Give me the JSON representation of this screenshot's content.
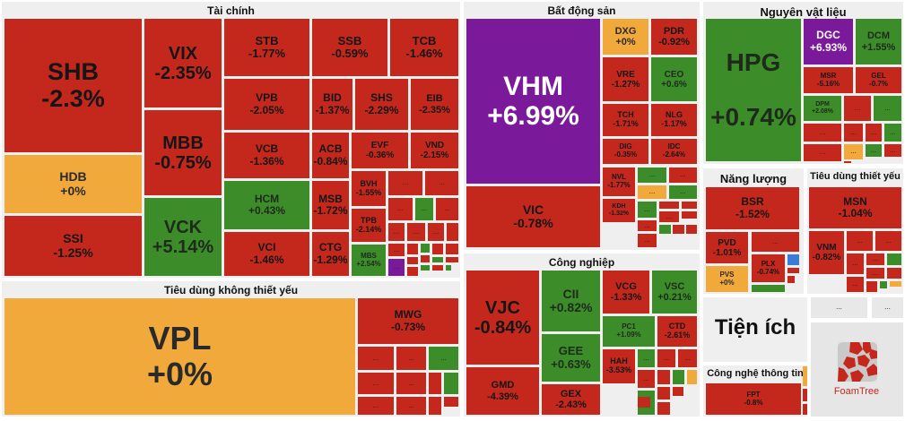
{
  "colors": {
    "down": "#c4281c",
    "up": "#3d8c2a",
    "flat": "#f2a93b",
    "ceiling": "#7a1a9a"
  },
  "ellipsis": "...",
  "groups": [
    {
      "id": "tai-chinh",
      "title": "Tài chính"
    },
    {
      "id": "tieu-dung-khong-thiet-yeu",
      "title": "Tiêu dùng không thiết yếu"
    },
    {
      "id": "bat-dong-san",
      "title": "Bất động sản"
    },
    {
      "id": "cong-nghiep",
      "title": "Công nghiệp"
    },
    {
      "id": "nguyen-vat-lieu",
      "title": "Nguyên vật liệu"
    },
    {
      "id": "nang-luong",
      "title": "Năng lượng"
    },
    {
      "id": "tieu-dung-thiet-yeu",
      "title": "Tiêu dùng thiết yếu"
    },
    {
      "id": "tien-ich",
      "title": "Tiện ích"
    },
    {
      "id": "cong-nghe-thong-tin",
      "title": "Công nghệ thông tin"
    }
  ],
  "tiles": [
    {
      "ticker": "SHB",
      "change": "-2.3%",
      "color": "r"
    },
    {
      "ticker": "HDB",
      "change": "+0%",
      "color": "o"
    },
    {
      "ticker": "SSI",
      "change": "-1.25%",
      "color": "r"
    },
    {
      "ticker": "VIX",
      "change": "-2.35%",
      "color": "r"
    },
    {
      "ticker": "MBB",
      "change": "-0.75%",
      "color": "r"
    },
    {
      "ticker": "VCK",
      "change": "+5.14%",
      "color": "g"
    },
    {
      "ticker": "STB",
      "change": "-1.77%",
      "color": "r"
    },
    {
      "ticker": "SSB",
      "change": "-0.59%",
      "color": "r"
    },
    {
      "ticker": "TCB",
      "change": "-1.46%",
      "color": "r"
    },
    {
      "ticker": "VPB",
      "change": "-2.05%",
      "color": "r"
    },
    {
      "ticker": "BID",
      "change": "-1.37%",
      "color": "r"
    },
    {
      "ticker": "SHS",
      "change": "-2.29%",
      "color": "r"
    },
    {
      "ticker": "EIB",
      "change": "-2.35%",
      "color": "r"
    },
    {
      "ticker": "VCB",
      "change": "-1.36%",
      "color": "r"
    },
    {
      "ticker": "ACB",
      "change": "-0.84%",
      "color": "r"
    },
    {
      "ticker": "EVF",
      "change": "-0.36%",
      "color": "r"
    },
    {
      "ticker": "VND",
      "change": "-2.15%",
      "color": "r"
    },
    {
      "ticker": "HCM",
      "change": "+0.43%",
      "color": "g"
    },
    {
      "ticker": "MSB",
      "change": "-1.72%",
      "color": "r"
    },
    {
      "ticker": "BVH",
      "change": "-1.55%",
      "color": "r"
    },
    {
      "ticker": "TPB",
      "change": "-2.14%",
      "color": "r"
    },
    {
      "ticker": "VCI",
      "change": "-1.46%",
      "color": "r"
    },
    {
      "ticker": "CTG",
      "change": "-1.29%",
      "color": "r"
    },
    {
      "ticker": "MBS",
      "change": "+2.54%",
      "color": "g"
    },
    {
      "ticker": "VPL",
      "change": "+0%",
      "color": "o"
    },
    {
      "ticker": "MWG",
      "change": "-0.73%",
      "color": "r"
    },
    {
      "ticker": "VHM",
      "change": "+6.99%",
      "color": "p"
    },
    {
      "ticker": "VIC",
      "change": "-0.78%",
      "color": "r"
    },
    {
      "ticker": "DXG",
      "change": "+0%",
      "color": "o"
    },
    {
      "ticker": "PDR",
      "change": "-0.92%",
      "color": "r"
    },
    {
      "ticker": "VRE",
      "change": "-1.27%",
      "color": "r"
    },
    {
      "ticker": "CEO",
      "change": "+0.6%",
      "color": "g"
    },
    {
      "ticker": "TCH",
      "change": "-1.71%",
      "color": "r"
    },
    {
      "ticker": "NLG",
      "change": "-1.17%",
      "color": "r"
    },
    {
      "ticker": "DIG",
      "change": "-0.35%",
      "color": "r"
    },
    {
      "ticker": "IDC",
      "change": "-2.64%",
      "color": "r"
    },
    {
      "ticker": "NVL",
      "change": "-1.77%",
      "color": "r"
    },
    {
      "ticker": "KDH",
      "change": "-1.32%",
      "color": "r"
    },
    {
      "ticker": "VJC",
      "change": "-0.84%",
      "color": "r"
    },
    {
      "ticker": "GMD",
      "change": "-4.39%",
      "color": "r"
    },
    {
      "ticker": "CII",
      "change": "+0.82%",
      "color": "g"
    },
    {
      "ticker": "GEE",
      "change": "+0.63%",
      "color": "g"
    },
    {
      "ticker": "GEX",
      "change": "-2.43%",
      "color": "r"
    },
    {
      "ticker": "VCG",
      "change": "-1.33%",
      "color": "r"
    },
    {
      "ticker": "VSC",
      "change": "+0.21%",
      "color": "g"
    },
    {
      "ticker": "PC1",
      "change": "+1.09%",
      "color": "g"
    },
    {
      "ticker": "CTD",
      "change": "-2.61%",
      "color": "r"
    },
    {
      "ticker": "HAH",
      "change": "-3.53%",
      "color": "r"
    },
    {
      "ticker": "HPG",
      "change": "+0.74%",
      "color": "g"
    },
    {
      "ticker": "DGC",
      "change": "+6.93%",
      "color": "p"
    },
    {
      "ticker": "DCM",
      "change": "+1.55%",
      "color": "g"
    },
    {
      "ticker": "MSR",
      "change": "-5.16%",
      "color": "r"
    },
    {
      "ticker": "GEL",
      "change": "-0.7%",
      "color": "r"
    },
    {
      "ticker": "DPM",
      "change": "+2.08%",
      "color": "g"
    },
    {
      "ticker": "BSR",
      "change": "-1.52%",
      "color": "r"
    },
    {
      "ticker": "PVD",
      "change": "-1.01%",
      "color": "r"
    },
    {
      "ticker": "PVS",
      "change": "+0%",
      "color": "o"
    },
    {
      "ticker": "PLX",
      "change": "-0.74%",
      "color": "r"
    },
    {
      "ticker": "MSN",
      "change": "-1.04%",
      "color": "r"
    },
    {
      "ticker": "VNM",
      "change": "-0.82%",
      "color": "r"
    },
    {
      "ticker": "FPT",
      "change": "-0.8%",
      "color": "r"
    }
  ],
  "small_tile_colors": "rrrgrrrrrrrgrrprrgrrgrgrrrgrrrgrrrrgroggrrrrrrgrrgrrrrgogrrrrrgrrrgrogrrrbrgrrrrrgrrrrgoorrprrrrgrrl",
  "logo": {
    "text": "FoamTree"
  }
}
